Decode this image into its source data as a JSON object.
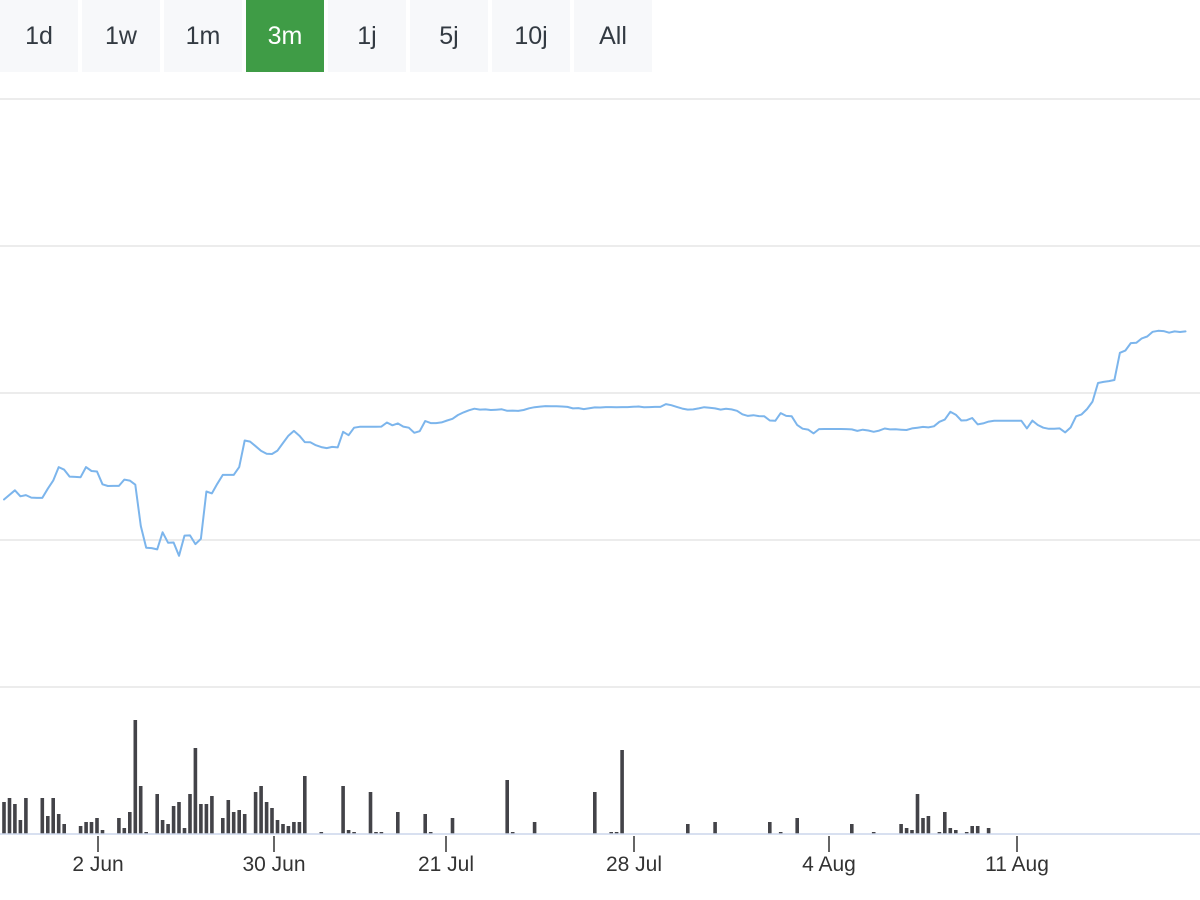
{
  "range_selector": {
    "buttons": [
      {
        "label": "1d",
        "active": false
      },
      {
        "label": "1w",
        "active": false
      },
      {
        "label": "1m",
        "active": false
      },
      {
        "label": "3m",
        "active": true
      },
      {
        "label": "1j",
        "active": false
      },
      {
        "label": "5j",
        "active": false
      },
      {
        "label": "10j",
        "active": false
      },
      {
        "label": "All",
        "active": false
      }
    ],
    "active_color": "#3f9c46"
  },
  "chart_data": {
    "type": "line",
    "x_ticks": [
      "2 Jun",
      "30 Jun",
      "21 Jul",
      "28 Jul",
      "4 Aug",
      "11 Aug"
    ],
    "grid": true,
    "line_color": "#7cb5ec",
    "volume_color": "#434348",
    "price_series": [
      {
        "i": 0,
        "v": 28.2
      },
      {
        "i": 2,
        "v": 34.5
      },
      {
        "i": 3,
        "v": 30.4
      },
      {
        "i": 4,
        "v": 31.2
      },
      {
        "i": 5,
        "v": 29.5
      },
      {
        "i": 6,
        "v": 29.3
      },
      {
        "i": 7,
        "v": 29.3
      },
      {
        "i": 8,
        "v": 35.6
      },
      {
        "i": 9,
        "v": 41.1
      },
      {
        "i": 10,
        "v": 50.3
      },
      {
        "i": 11,
        "v": 48.5
      },
      {
        "i": 12,
        "v": 43.8
      },
      {
        "i": 13,
        "v": 43.6
      },
      {
        "i": 14,
        "v": 43.4
      },
      {
        "i": 15,
        "v": 50.3
      },
      {
        "i": 16,
        "v": 47.6
      },
      {
        "i": 17,
        "v": 47.3
      },
      {
        "i": 18,
        "v": 38.6
      },
      {
        "i": 19,
        "v": 37.4
      },
      {
        "i": 20,
        "v": 37.5
      },
      {
        "i": 21,
        "v": 37.5
      },
      {
        "i": 22,
        "v": 41.8
      },
      {
        "i": 23,
        "v": 41.1
      },
      {
        "i": 24,
        "v": 38.3
      },
      {
        "i": 25,
        "v": 10.2
      },
      {
        "i": 26,
        "v": -4.6
      },
      {
        "i": 27,
        "v": -4.8
      },
      {
        "i": 28,
        "v": -5.7
      },
      {
        "i": 29,
        "v": 5.9
      },
      {
        "i": 30,
        "v": -1.2
      },
      {
        "i": 31,
        "v": -1.0
      },
      {
        "i": 32,
        "v": -10.1
      },
      {
        "i": 33,
        "v": 3.7
      },
      {
        "i": 34,
        "v": 3.8
      },
      {
        "i": 35,
        "v": -2.1
      },
      {
        "i": 36,
        "v": 1.5
      },
      {
        "i": 37,
        "v": 33.7
      },
      {
        "i": 38,
        "v": 32.4
      },
      {
        "i": 39,
        "v": 38.9
      },
      {
        "i": 40,
        "v": 45.0
      },
      {
        "i": 41,
        "v": 45.0
      },
      {
        "i": 42,
        "v": 45.0
      },
      {
        "i": 43,
        "v": 50.3
      },
      {
        "i": 44,
        "v": 68.4
      },
      {
        "i": 45,
        "v": 67.6
      },
      {
        "i": 46,
        "v": 64.5
      },
      {
        "i": 47,
        "v": 61.3
      },
      {
        "i": 48,
        "v": 59.3
      },
      {
        "i": 49,
        "v": 59.2
      },
      {
        "i": 50,
        "v": 61.5
      },
      {
        "i": 51,
        "v": 66.7
      },
      {
        "i": 52,
        "v": 71.6
      },
      {
        "i": 53,
        "v": 74.9
      },
      {
        "i": 54,
        "v": 71.6
      },
      {
        "i": 55,
        "v": 67.3
      },
      {
        "i": 56,
        "v": 67.2
      },
      {
        "i": 57,
        "v": 65.2
      },
      {
        "i": 58,
        "v": 63.9
      },
      {
        "i": 59,
        "v": 63.2
      },
      {
        "i": 60,
        "v": 64.0
      },
      {
        "i": 61,
        "v": 63.7
      },
      {
        "i": 62,
        "v": 74.3
      },
      {
        "i": 63,
        "v": 72.0
      },
      {
        "i": 64,
        "v": 77.1
      },
      {
        "i": 65,
        "v": 77.7
      },
      {
        "i": 66,
        "v": 77.7
      },
      {
        "i": 67,
        "v": 77.7
      },
      {
        "i": 68,
        "v": 77.7
      },
      {
        "i": 69,
        "v": 77.8
      },
      {
        "i": 70,
        "v": 80.6
      },
      {
        "i": 71,
        "v": 78.7
      },
      {
        "i": 72,
        "v": 80.0
      },
      {
        "i": 73,
        "v": 77.8
      },
      {
        "i": 74,
        "v": 77.1
      },
      {
        "i": 75,
        "v": 73.6
      },
      {
        "i": 76,
        "v": 74.7
      },
      {
        "i": 77,
        "v": 81.6
      },
      {
        "i": 78,
        "v": 80.2
      },
      {
        "i": 79,
        "v": 80.2
      },
      {
        "i": 80,
        "v": 80.7
      },
      {
        "i": 81,
        "v": 82.0
      },
      {
        "i": 82,
        "v": 83.1
      },
      {
        "i": 83,
        "v": 85.7
      },
      {
        "i": 84,
        "v": 87.5
      },
      {
        "i": 85,
        "v": 88.9
      },
      {
        "i": 86,
        "v": 90.0
      },
      {
        "i": 87,
        "v": 89.4
      },
      {
        "i": 88,
        "v": 89.5
      },
      {
        "i": 89,
        "v": 89.1
      },
      {
        "i": 90,
        "v": 89.3
      },
      {
        "i": 91,
        "v": 89.6
      },
      {
        "i": 92,
        "v": 88.6
      },
      {
        "i": 93,
        "v": 88.7
      },
      {
        "i": 94,
        "v": 88.5
      },
      {
        "i": 95,
        "v": 89.1
      },
      {
        "i": 96,
        "v": 90.3
      },
      {
        "i": 97,
        "v": 91.0
      },
      {
        "i": 98,
        "v": 91.4
      },
      {
        "i": 99,
        "v": 91.8
      },
      {
        "i": 100,
        "v": 91.7
      },
      {
        "i": 101,
        "v": 91.6
      },
      {
        "i": 102,
        "v": 91.5
      },
      {
        "i": 103,
        "v": 91.2
      },
      {
        "i": 104,
        "v": 90.2
      },
      {
        "i": 105,
        "v": 90.4
      },
      {
        "i": 106,
        "v": 89.7
      },
      {
        "i": 107,
        "v": 90.3
      },
      {
        "i": 108,
        "v": 90.9
      },
      {
        "i": 109,
        "v": 90.8
      },
      {
        "i": 110,
        "v": 91.1
      },
      {
        "i": 111,
        "v": 91.1
      },
      {
        "i": 112,
        "v": 91.0
      },
      {
        "i": 113,
        "v": 91.1
      },
      {
        "i": 114,
        "v": 91.1
      },
      {
        "i": 115,
        "v": 91.3
      },
      {
        "i": 116,
        "v": 91.5
      },
      {
        "i": 117,
        "v": 91.0
      },
      {
        "i": 118,
        "v": 91.1
      },
      {
        "i": 119,
        "v": 91.2
      },
      {
        "i": 120,
        "v": 91.2
      },
      {
        "i": 121,
        "v": 93.1
      },
      {
        "i": 122,
        "v": 92.4
      },
      {
        "i": 123,
        "v": 91.2
      },
      {
        "i": 124,
        "v": 90.1
      },
      {
        "i": 125,
        "v": 89.4
      },
      {
        "i": 126,
        "v": 89.5
      },
      {
        "i": 127,
        "v": 90.2
      },
      {
        "i": 128,
        "v": 91.0
      },
      {
        "i": 129,
        "v": 90.6
      },
      {
        "i": 130,
        "v": 90.2
      },
      {
        "i": 131,
        "v": 89.4
      },
      {
        "i": 132,
        "v": 89.9
      },
      {
        "i": 133,
        "v": 89.5
      },
      {
        "i": 134,
        "v": 88.6
      },
      {
        "i": 135,
        "v": 86.2
      },
      {
        "i": 136,
        "v": 85.1
      },
      {
        "i": 137,
        "v": 85.6
      },
      {
        "i": 138,
        "v": 85.0
      },
      {
        "i": 139,
        "v": 84.8
      },
      {
        "i": 140,
        "v": 82.0
      },
      {
        "i": 141,
        "v": 81.8
      },
      {
        "i": 142,
        "v": 87.0
      },
      {
        "i": 143,
        "v": 85.1
      },
      {
        "i": 144,
        "v": 84.8
      },
      {
        "i": 145,
        "v": 79.0
      },
      {
        "i": 146,
        "v": 76.4
      },
      {
        "i": 147,
        "v": 75.8
      },
      {
        "i": 148,
        "v": 73.2
      },
      {
        "i": 149,
        "v": 76.1
      },
      {
        "i": 150,
        "v": 76.2
      },
      {
        "i": 151,
        "v": 76.2
      },
      {
        "i": 152,
        "v": 76.2
      },
      {
        "i": 153,
        "v": 76.2
      },
      {
        "i": 154,
        "v": 76.1
      },
      {
        "i": 155,
        "v": 75.9
      },
      {
        "i": 156,
        "v": 74.9
      },
      {
        "i": 157,
        "v": 75.7
      },
      {
        "i": 158,
        "v": 75.2
      },
      {
        "i": 159,
        "v": 74.3
      },
      {
        "i": 160,
        "v": 75.1
      },
      {
        "i": 161,
        "v": 76.5
      },
      {
        "i": 162,
        "v": 75.9
      },
      {
        "i": 163,
        "v": 76.0
      },
      {
        "i": 164,
        "v": 75.7
      },
      {
        "i": 165,
        "v": 75.5
      },
      {
        "i": 166,
        "v": 76.6
      },
      {
        "i": 167,
        "v": 77.1
      },
      {
        "i": 168,
        "v": 77.6
      },
      {
        "i": 169,
        "v": 77.3
      },
      {
        "i": 170,
        "v": 78.0
      },
      {
        "i": 171,
        "v": 81.1
      },
      {
        "i": 172,
        "v": 82.6
      },
      {
        "i": 173,
        "v": 87.9
      },
      {
        "i": 174,
        "v": 85.9
      },
      {
        "i": 175,
        "v": 82.0
      },
      {
        "i": 176,
        "v": 82.2
      },
      {
        "i": 177,
        "v": 83.7
      },
      {
        "i": 178,
        "v": 79.3
      },
      {
        "i": 179,
        "v": 80.0
      },
      {
        "i": 180,
        "v": 81.2
      },
      {
        "i": 181,
        "v": 81.8
      },
      {
        "i": 182,
        "v": 81.8
      },
      {
        "i": 183,
        "v": 81.8
      },
      {
        "i": 184,
        "v": 81.8
      },
      {
        "i": 185,
        "v": 81.8
      },
      {
        "i": 186,
        "v": 81.8
      },
      {
        "i": 187,
        "v": 76.6
      },
      {
        "i": 188,
        "v": 81.9
      },
      {
        "i": 189,
        "v": 78.9
      },
      {
        "i": 190,
        "v": 77.1
      },
      {
        "i": 191,
        "v": 76.3
      },
      {
        "i": 192,
        "v": 76.3
      },
      {
        "i": 193,
        "v": 76.6
      },
      {
        "i": 194,
        "v": 73.9
      },
      {
        "i": 195,
        "v": 77.2
      },
      {
        "i": 196,
        "v": 84.8
      },
      {
        "i": 197,
        "v": 86.1
      },
      {
        "i": 198,
        "v": 89.8
      },
      {
        "i": 199,
        "v": 94.8
      },
      {
        "i": 200,
        "v": 107.5
      },
      {
        "i": 201,
        "v": 108.2
      },
      {
        "i": 202,
        "v": 108.8
      },
      {
        "i": 203,
        "v": 109.5
      },
      {
        "i": 204,
        "v": 128.0
      },
      {
        "i": 205,
        "v": 129.5
      },
      {
        "i": 206,
        "v": 134.6
      },
      {
        "i": 207,
        "v": 134.8
      },
      {
        "i": 208,
        "v": 137.8
      },
      {
        "i": 209,
        "v": 139.1
      },
      {
        "i": 210,
        "v": 142.3
      },
      {
        "i": 211,
        "v": 143.0
      },
      {
        "i": 212,
        "v": 142.8
      },
      {
        "i": 213,
        "v": 141.7
      },
      {
        "i": 214,
        "v": 142.6
      },
      {
        "i": 215,
        "v": 142.2
      },
      {
        "i": 216,
        "v": 142.6
      }
    ],
    "volume_series": [
      {
        "i": 0,
        "v": 32
      },
      {
        "i": 1,
        "v": 36
      },
      {
        "i": 2,
        "v": 30
      },
      {
        "i": 3,
        "v": 14
      },
      {
        "i": 4,
        "v": 36
      },
      {
        "i": 7,
        "v": 36
      },
      {
        "i": 8,
        "v": 18
      },
      {
        "i": 9,
        "v": 36
      },
      {
        "i": 10,
        "v": 20
      },
      {
        "i": 11,
        "v": 10
      },
      {
        "i": 14,
        "v": 8
      },
      {
        "i": 15,
        "v": 12
      },
      {
        "i": 16,
        "v": 12
      },
      {
        "i": 17,
        "v": 16
      },
      {
        "i": 18,
        "v": 4
      },
      {
        "i": 21,
        "v": 16
      },
      {
        "i": 22,
        "v": 6
      },
      {
        "i": 23,
        "v": 22
      },
      {
        "i": 24,
        "v": 114
      },
      {
        "i": 25,
        "v": 48
      },
      {
        "i": 26,
        "v": 2
      },
      {
        "i": 28,
        "v": 40
      },
      {
        "i": 29,
        "v": 14
      },
      {
        "i": 30,
        "v": 10
      },
      {
        "i": 31,
        "v": 28
      },
      {
        "i": 32,
        "v": 32
      },
      {
        "i": 33,
        "v": 6
      },
      {
        "i": 34,
        "v": 40
      },
      {
        "i": 35,
        "v": 86
      },
      {
        "i": 36,
        "v": 30
      },
      {
        "i": 37,
        "v": 30
      },
      {
        "i": 38,
        "v": 38
      },
      {
        "i": 40,
        "v": 16
      },
      {
        "i": 41,
        "v": 34
      },
      {
        "i": 42,
        "v": 22
      },
      {
        "i": 43,
        "v": 24
      },
      {
        "i": 44,
        "v": 20
      },
      {
        "i": 46,
        "v": 42
      },
      {
        "i": 47,
        "v": 48
      },
      {
        "i": 48,
        "v": 32
      },
      {
        "i": 49,
        "v": 26
      },
      {
        "i": 50,
        "v": 14
      },
      {
        "i": 51,
        "v": 10
      },
      {
        "i": 52,
        "v": 8
      },
      {
        "i": 53,
        "v": 12
      },
      {
        "i": 54,
        "v": 12
      },
      {
        "i": 55,
        "v": 58
      },
      {
        "i": 58,
        "v": 2
      },
      {
        "i": 62,
        "v": 48
      },
      {
        "i": 63,
        "v": 4
      },
      {
        "i": 64,
        "v": 2
      },
      {
        "i": 67,
        "v": 42
      },
      {
        "i": 68,
        "v": 2
      },
      {
        "i": 69,
        "v": 2
      },
      {
        "i": 72,
        "v": 22
      },
      {
        "i": 77,
        "v": 20
      },
      {
        "i": 78,
        "v": 2
      },
      {
        "i": 82,
        "v": 16
      },
      {
        "i": 92,
        "v": 54
      },
      {
        "i": 93,
        "v": 2
      },
      {
        "i": 97,
        "v": 12
      },
      {
        "i": 108,
        "v": 42
      },
      {
        "i": 111,
        "v": 2
      },
      {
        "i": 112,
        "v": 2
      },
      {
        "i": 113,
        "v": 84
      },
      {
        "i": 125,
        "v": 10
      },
      {
        "i": 130,
        "v": 12
      },
      {
        "i": 140,
        "v": 12
      },
      {
        "i": 142,
        "v": 2
      },
      {
        "i": 145,
        "v": 16
      },
      {
        "i": 155,
        "v": 10
      },
      {
        "i": 159,
        "v": 2
      },
      {
        "i": 164,
        "v": 10
      },
      {
        "i": 165,
        "v": 6
      },
      {
        "i": 166,
        "v": 4
      },
      {
        "i": 167,
        "v": 40
      },
      {
        "i": 168,
        "v": 16
      },
      {
        "i": 169,
        "v": 18
      },
      {
        "i": 171,
        "v": 2
      },
      {
        "i": 172,
        "v": 22
      },
      {
        "i": 173,
        "v": 6
      },
      {
        "i": 174,
        "v": 4
      },
      {
        "i": 176,
        "v": 2
      },
      {
        "i": 177,
        "v": 8
      },
      {
        "i": 178,
        "v": 8
      },
      {
        "i": 180,
        "v": 6
      }
    ]
  }
}
